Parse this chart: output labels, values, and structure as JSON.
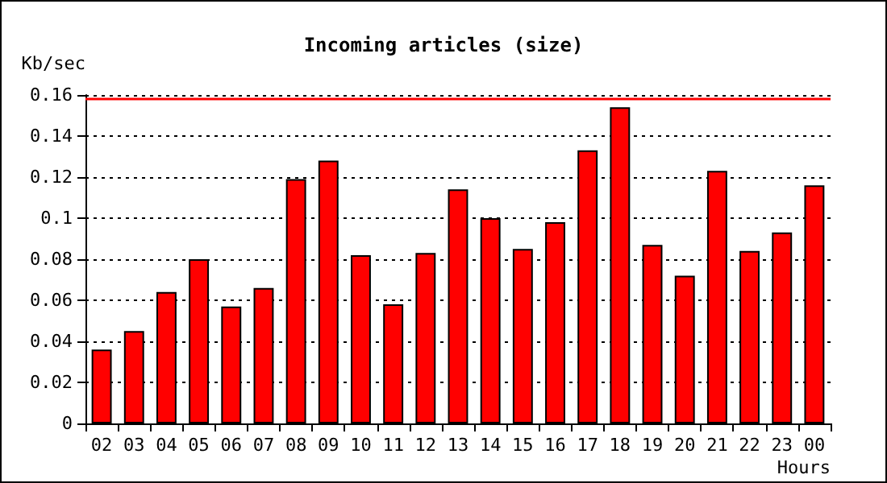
{
  "chart_data": {
    "type": "bar",
    "title": "Incoming articles (size)",
    "xlabel": "Hours",
    "ylabel": "Kb/sec",
    "categories": [
      "02",
      "03",
      "04",
      "05",
      "06",
      "07",
      "08",
      "09",
      "10",
      "11",
      "12",
      "13",
      "14",
      "15",
      "16",
      "17",
      "18",
      "19",
      "20",
      "21",
      "22",
      "23",
      "00"
    ],
    "values": [
      0.036,
      0.045,
      0.064,
      0.08,
      0.057,
      0.066,
      0.119,
      0.128,
      0.082,
      0.058,
      0.083,
      0.114,
      0.1,
      0.085,
      0.098,
      0.133,
      0.154,
      0.087,
      0.072,
      0.123,
      0.084,
      0.093,
      0.116
    ],
    "color": "#ff0000",
    "ylim": [
      0,
      0.16
    ],
    "yticks": [
      0,
      0.02,
      0.04,
      0.06,
      0.08,
      0.1,
      0.12,
      0.14,
      0.16
    ],
    "grid": "y",
    "ref_lines": [
      {
        "axis": "y",
        "value": 0.158,
        "color": "#ff0000"
      }
    ]
  }
}
